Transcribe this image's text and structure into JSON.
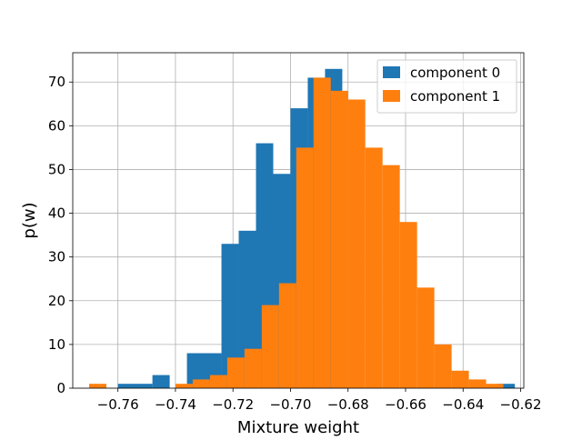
{
  "chart_data": {
    "type": "histogram",
    "title": "",
    "xlabel": "Mixture weight",
    "ylabel": "p(w)",
    "xlim": [
      -0.7757,
      -0.6189
    ],
    "ylim": [
      0,
      76.7
    ],
    "grid": true,
    "legend_position": "top-right",
    "x_ticks": [
      -0.76,
      -0.74,
      -0.72,
      -0.7,
      -0.68,
      -0.66,
      -0.64,
      -0.62
    ],
    "x_tick_labels": [
      "−0.76",
      "−0.74",
      "−0.72",
      "−0.70",
      "−0.68",
      "−0.66",
      "−0.64",
      "−0.62"
    ],
    "y_ticks": [
      0,
      10,
      20,
      30,
      40,
      50,
      60,
      70
    ],
    "y_tick_labels": [
      "0",
      "10",
      "20",
      "30",
      "40",
      "50",
      "60",
      "70"
    ],
    "series": [
      {
        "name": "component 0",
        "color": "#1f77b4",
        "bins": [
          {
            "x0": -0.76,
            "x1": -0.748,
            "value": 1
          },
          {
            "x0": -0.748,
            "x1": -0.742,
            "value": 3
          },
          {
            "x0": -0.742,
            "x1": -0.736,
            "value": 0
          },
          {
            "x0": -0.736,
            "x1": -0.724,
            "value": 8
          },
          {
            "x0": -0.724,
            "x1": -0.718,
            "value": 33
          },
          {
            "x0": -0.718,
            "x1": -0.712,
            "value": 36
          },
          {
            "x0": -0.712,
            "x1": -0.706,
            "value": 56
          },
          {
            "x0": -0.706,
            "x1": -0.7,
            "value": 49
          },
          {
            "x0": -0.7,
            "x1": -0.694,
            "value": 64
          },
          {
            "x0": -0.694,
            "x1": -0.688,
            "value": 71
          },
          {
            "x0": -0.688,
            "x1": -0.682,
            "value": 73
          },
          {
            "x0": -0.628,
            "x1": -0.622,
            "value": 1
          }
        ]
      },
      {
        "name": "component 1",
        "color": "#ff7f0e",
        "bins": [
          {
            "x0": -0.77,
            "x1": -0.764,
            "value": 1
          },
          {
            "x0": -0.74,
            "x1": -0.734,
            "value": 1
          },
          {
            "x0": -0.734,
            "x1": -0.728,
            "value": 2
          },
          {
            "x0": -0.728,
            "x1": -0.722,
            "value": 3
          },
          {
            "x0": -0.722,
            "x1": -0.716,
            "value": 7
          },
          {
            "x0": -0.716,
            "x1": -0.71,
            "value": 9
          },
          {
            "x0": -0.71,
            "x1": -0.704,
            "value": 19
          },
          {
            "x0": -0.704,
            "x1": -0.698,
            "value": 24
          },
          {
            "x0": -0.698,
            "x1": -0.692,
            "value": 55
          },
          {
            "x0": -0.692,
            "x1": -0.686,
            "value": 71
          },
          {
            "x0": -0.686,
            "x1": -0.68,
            "value": 68
          },
          {
            "x0": -0.68,
            "x1": -0.674,
            "value": 66
          },
          {
            "x0": -0.674,
            "x1": -0.668,
            "value": 55
          },
          {
            "x0": -0.668,
            "x1": -0.662,
            "value": 51
          },
          {
            "x0": -0.662,
            "x1": -0.656,
            "value": 38
          },
          {
            "x0": -0.656,
            "x1": -0.65,
            "value": 23
          },
          {
            "x0": -0.65,
            "x1": -0.644,
            "value": 10
          },
          {
            "x0": -0.644,
            "x1": -0.638,
            "value": 4
          },
          {
            "x0": -0.638,
            "x1": -0.632,
            "value": 2
          },
          {
            "x0": -0.632,
            "x1": -0.626,
            "value": 1
          }
        ]
      }
    ]
  }
}
